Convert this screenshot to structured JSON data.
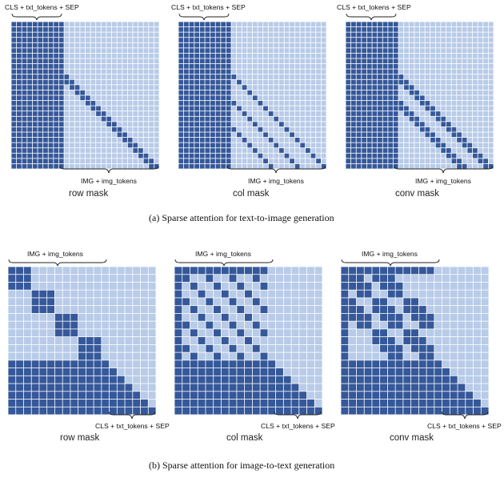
{
  "colors": {
    "dark": "#35589a",
    "light": "#b8cbe8",
    "grid_line": "#ffffff"
  },
  "section_a": {
    "caption": "(a)  Sparse attention for text-to-image generation",
    "top_brace_label": "CLS + txt_tokens + SEP",
    "bottom_brace_label": "IMG + img_tokens",
    "grid_size": 28,
    "text_token_count": 10,
    "masks": [
      {
        "name": "row mask",
        "pattern": "row"
      },
      {
        "name": "col mask",
        "pattern": "col"
      },
      {
        "name": "conv mask",
        "pattern": "conv"
      }
    ]
  },
  "section_b": {
    "caption": "(b)  Sparse attention for image-to-text generation",
    "top_brace_label": "IMG + img_tokens",
    "bottom_brace_label": "CLS + txt_tokens + SEP",
    "grid_size": 19,
    "image_token_count": 12,
    "masks": [
      {
        "name": "row mask",
        "pattern": "row"
      },
      {
        "name": "col mask",
        "pattern": "col"
      },
      {
        "name": "conv mask",
        "pattern": "conv"
      }
    ]
  }
}
